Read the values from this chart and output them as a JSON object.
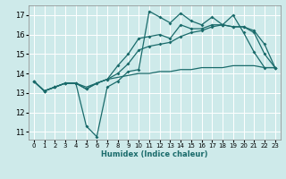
{
  "xlabel": "Humidex (Indice chaleur)",
  "bg_color": "#ceeaea",
  "grid_color": "#ffffff",
  "line_color": "#1a6b6b",
  "xlim": [
    -0.5,
    23.5
  ],
  "ylim": [
    10.6,
    17.5
  ],
  "xticks": [
    0,
    1,
    2,
    3,
    4,
    5,
    6,
    7,
    8,
    9,
    10,
    11,
    12,
    13,
    14,
    15,
    16,
    17,
    18,
    19,
    20,
    21,
    22,
    23
  ],
  "yticks": [
    11,
    12,
    13,
    14,
    15,
    16,
    17
  ],
  "line1_x": [
    0,
    1,
    2,
    3,
    4,
    5,
    6,
    7,
    8,
    9,
    10,
    11,
    12,
    13,
    14,
    15,
    16,
    17,
    18,
    19,
    20,
    21,
    22,
    23
  ],
  "line1_y": [
    13.6,
    13.1,
    13.3,
    13.5,
    13.5,
    11.3,
    10.75,
    13.3,
    13.6,
    14.1,
    14.2,
    17.2,
    16.9,
    16.6,
    17.1,
    16.7,
    16.5,
    16.9,
    16.5,
    17.0,
    16.1,
    15.1,
    14.3,
    14.3
  ],
  "line2_x": [
    0,
    1,
    2,
    3,
    4,
    5,
    6,
    7,
    8,
    9,
    10,
    11,
    12,
    13,
    14,
    15,
    16,
    17,
    18,
    19,
    20,
    21,
    22,
    23
  ],
  "line2_y": [
    13.6,
    13.1,
    13.3,
    13.5,
    13.5,
    13.2,
    13.5,
    13.7,
    14.4,
    15.0,
    15.8,
    15.9,
    16.0,
    15.8,
    16.5,
    16.3,
    16.3,
    16.5,
    16.5,
    16.4,
    16.4,
    16.1,
    15.0,
    14.3
  ],
  "line3_x": [
    0,
    1,
    2,
    3,
    4,
    5,
    6,
    7,
    8,
    9,
    10,
    11,
    12,
    13,
    14,
    15,
    16,
    17,
    18,
    19,
    20,
    21,
    22,
    23
  ],
  "line3_y": [
    13.6,
    13.1,
    13.3,
    13.5,
    13.5,
    13.2,
    13.5,
    13.7,
    14.0,
    14.5,
    15.2,
    15.4,
    15.5,
    15.6,
    15.9,
    16.1,
    16.2,
    16.4,
    16.5,
    16.4,
    16.4,
    16.2,
    15.5,
    14.3
  ],
  "line4_x": [
    0,
    1,
    2,
    3,
    4,
    5,
    6,
    7,
    8,
    9,
    10,
    11,
    12,
    13,
    14,
    15,
    16,
    17,
    18,
    19,
    20,
    21,
    22,
    23
  ],
  "line4_y": [
    13.6,
    13.1,
    13.3,
    13.5,
    13.5,
    13.3,
    13.5,
    13.7,
    13.8,
    13.9,
    14.0,
    14.0,
    14.1,
    14.1,
    14.2,
    14.2,
    14.3,
    14.3,
    14.3,
    14.4,
    14.4,
    14.4,
    14.3,
    14.3
  ]
}
